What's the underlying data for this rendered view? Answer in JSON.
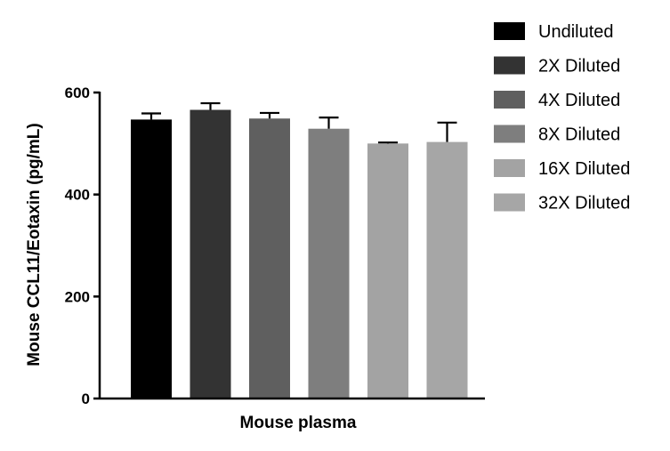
{
  "chart_data": {
    "type": "bar",
    "title": "",
    "xlabel": "Mouse plasma",
    "ylabel": "Mouse CCL11/Eotaxin (pg/mL)",
    "ylim": [
      0,
      600
    ],
    "yticks": [
      "0",
      "200",
      "400",
      "600"
    ],
    "grid": false,
    "legend_position": "right",
    "series": [
      {
        "name": "Undiluted",
        "value": 547,
        "error": 12,
        "color": "#000000"
      },
      {
        "name": "2X Diluted",
        "value": 566,
        "error": 13,
        "color": "#333333"
      },
      {
        "name": "4X Diluted",
        "value": 549,
        "error": 11,
        "color": "#5f5f5f"
      },
      {
        "name": "8X Diluted",
        "value": 529,
        "error": 22,
        "color": "#7e7e7e"
      },
      {
        "name": "16X Diluted",
        "value": 500,
        "error": 2,
        "color": "#a3a3a3"
      },
      {
        "name": "32X Diluted",
        "value": 503,
        "error": 38,
        "color": "#a6a6a6"
      }
    ]
  }
}
